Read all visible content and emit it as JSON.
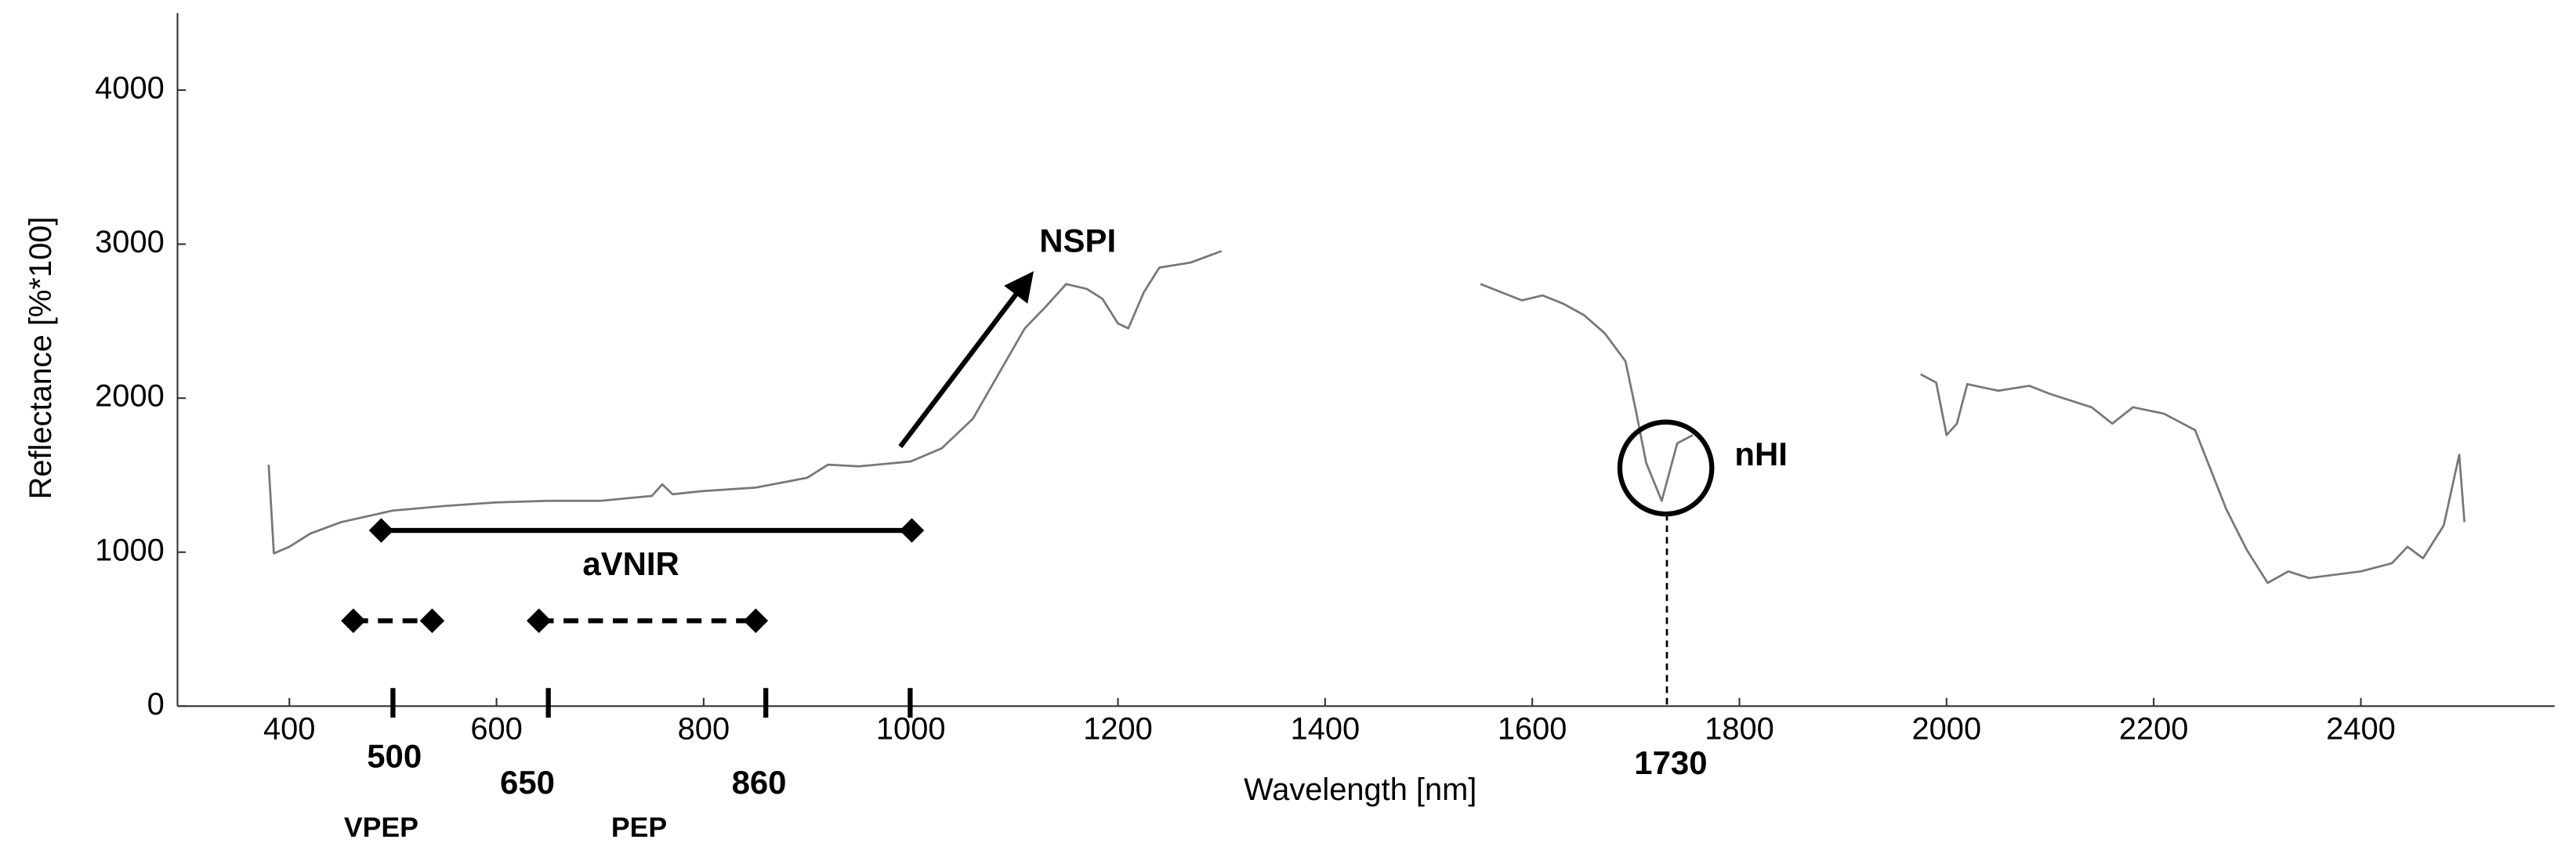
{
  "chart_data": {
    "type": "line",
    "x_label": "Wavelength [nm]",
    "y_label": "Reflectance [%*100]",
    "xlim": [
      292,
      2587
    ],
    "ylim": [
      0,
      4500
    ],
    "xticks": [
      400,
      600,
      800,
      1000,
      1200,
      1400,
      1600,
      1800,
      2000,
      2200,
      2400
    ],
    "yticks": [
      0,
      1000,
      2000,
      3000,
      4000
    ],
    "grid": false,
    "x": [
      380,
      385,
      400,
      420,
      450,
      500,
      550,
      600,
      650,
      700,
      750,
      760,
      770,
      800,
      850,
      900,
      920,
      950,
      1000,
      1030,
      1060,
      1090,
      1110,
      1130,
      1150,
      1170,
      1185,
      1200,
      1210,
      1225,
      1240,
      1270,
      1300,
      1400,
      1550,
      1570,
      1590,
      1610,
      1630,
      1650,
      1670,
      1690,
      1700,
      1710,
      1725,
      1740,
      1755,
      1850,
      1975,
      1990,
      2000,
      2010,
      2020,
      2050,
      2080,
      2100,
      2140,
      2160,
      2180,
      2210,
      2240,
      2270,
      2290,
      2310,
      2330,
      2350,
      2400,
      2430,
      2445,
      2460,
      2480,
      2495,
      2500
    ],
    "series": [
      {
        "color": "#777777",
        "values": [
          1568,
          992,
          1035,
          1120,
          1195,
          1270,
          1300,
          1323,
          1333,
          1333,
          1365,
          1440,
          1376,
          1397,
          1419,
          1483,
          1568,
          1557,
          1589,
          1675,
          1867,
          2219,
          2453,
          2592,
          2741,
          2709,
          2645,
          2485,
          2453,
          2688,
          2848,
          2880,
          2955,
          null,
          2741,
          2688,
          2635,
          2667,
          2613,
          2539,
          2421,
          2240,
          1920,
          1579,
          1333,
          1707,
          1760,
          null,
          2155,
          2101,
          1760,
          1835,
          2091,
          2048,
          2080,
          2027,
          1941,
          1835,
          1941,
          1899,
          1792,
          1280,
          1013,
          800,
          875,
          832,
          875,
          928,
          1035,
          960,
          1173,
          1632,
          1195
        ]
      }
    ],
    "wavelength_markers": [
      500,
      650,
      860,
      1730
    ],
    "annotations": [
      "NSPI",
      "aVNIR",
      "nHI",
      "VPEP",
      "PEP"
    ]
  }
}
